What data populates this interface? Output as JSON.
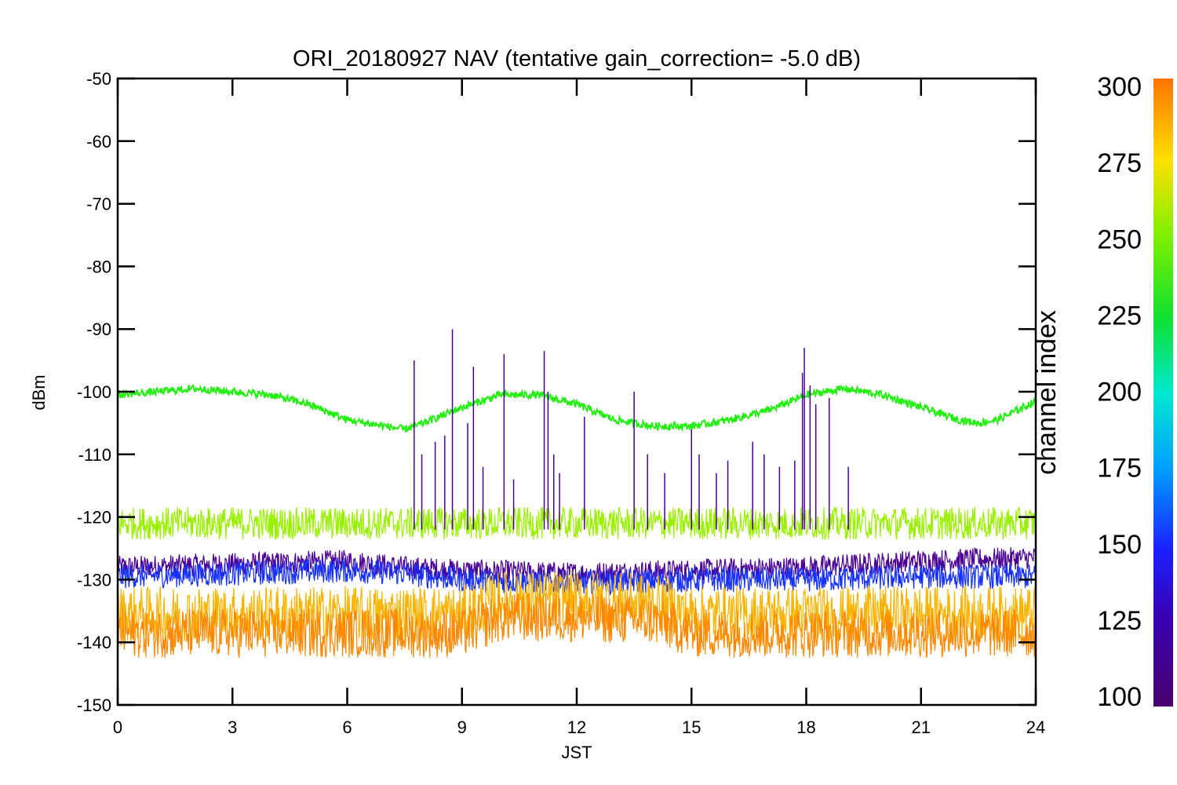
{
  "chart_data": {
    "type": "line",
    "title": "ORI_20180927 NAV (tentative gain_correction= -5.0 dB)",
    "xlabel": "JST",
    "ylabel": "dBm",
    "xlim": [
      0,
      24
    ],
    "ylim": [
      -150,
      -50
    ],
    "x_ticks": [
      0,
      3,
      6,
      9,
      12,
      15,
      18,
      21,
      24
    ],
    "y_ticks": [
      -50,
      -60,
      -70,
      -80,
      -90,
      -100,
      -110,
      -120,
      -130,
      -140,
      -150
    ],
    "grid": false,
    "colorbar": {
      "label": "channel index",
      "range": [
        100,
        300
      ],
      "ticks": [
        100,
        125,
        150,
        175,
        200,
        225,
        250,
        275,
        300
      ]
    },
    "series": [
      {
        "channel": 230,
        "color": "#22ee10",
        "x": [
          0,
          1,
          2,
          3,
          4,
          5,
          6,
          7,
          7.5,
          8,
          9,
          10,
          11,
          12,
          13,
          13.5,
          14,
          15,
          16,
          17,
          18,
          19,
          20,
          21,
          22,
          22.5,
          23,
          24
        ],
        "y": [
          -100.5,
          -100,
          -99.5,
          -100,
          -100.5,
          -102,
          -104.5,
          -105.5,
          -106,
          -105,
          -102.5,
          -100.5,
          -100.5,
          -102,
          -104.5,
          -105,
          -105.5,
          -105.5,
          -104.5,
          -103,
          -100.5,
          -99.5,
          -100.5,
          -102.5,
          -104.5,
          -105,
          -104.5,
          -101.5
        ]
      },
      {
        "channel": 260,
        "color": "#9af000",
        "x": [
          0,
          3,
          6,
          9,
          12,
          15,
          18,
          21,
          24
        ],
        "y": [
          -121,
          -121,
          -121,
          -121,
          -121,
          -121,
          -121,
          -121,
          -121
        ]
      },
      {
        "channel": 110,
        "color": "#4a0090",
        "x": [
          0,
          3,
          6,
          7.5,
          9,
          12,
          15,
          18,
          21,
          24
        ],
        "y": [
          -128,
          -127.5,
          -127,
          -128,
          -128.5,
          -129,
          -128.5,
          -128,
          -127,
          -126.5
        ]
      },
      {
        "channel": 130,
        "color": "#1530ff",
        "x": [
          0,
          3,
          6,
          7.5,
          9,
          12,
          15,
          18,
          21,
          24
        ],
        "y": [
          -129.5,
          -129,
          -128.5,
          -129,
          -130,
          -130.5,
          -130,
          -130,
          -129.5,
          -129.5
        ]
      },
      {
        "channel": 280,
        "color": "#f8b400",
        "x": [
          0,
          3,
          6,
          9,
          10,
          12,
          14,
          15,
          18,
          21,
          24
        ],
        "y": [
          -135.5,
          -135.5,
          -135.5,
          -135.5,
          -133,
          -133,
          -133.5,
          -135.5,
          -135.5,
          -135.5,
          -135.5
        ]
      },
      {
        "channel": 295,
        "color": "#ff8800",
        "x": [
          0,
          3,
          6,
          9,
          10,
          12,
          14,
          15,
          18,
          21,
          24
        ],
        "y": [
          -138.5,
          -138.5,
          -138.5,
          -138.5,
          -136,
          -136,
          -136.5,
          -138.5,
          -138.5,
          -138.5,
          -138.5
        ]
      }
    ],
    "spikes": {
      "channel": 110,
      "color": "#4a0090",
      "x": [
        7.75,
        7.95,
        8.3,
        8.55,
        8.75,
        9.15,
        9.3,
        9.55,
        10.1,
        10.35,
        11.15,
        11.25,
        11.4,
        11.55,
        12.2,
        13.5,
        13.85,
        14.3,
        15.0,
        15.2,
        15.65,
        15.95,
        16.6,
        16.9,
        17.3,
        17.7,
        17.9,
        17.95,
        18.1,
        18.25,
        18.6,
        19.1
      ],
      "y": [
        -95,
        -110,
        -108,
        -107,
        -90,
        -105,
        -96,
        -112,
        -94,
        -114,
        -93.5,
        -100,
        -110,
        -113,
        -104,
        -100,
        -110,
        -113,
        -106,
        -110,
        -113,
        -111,
        -108,
        -110,
        -112,
        -111,
        -97,
        -93,
        -99,
        -102,
        -101,
        -112
      ]
    }
  }
}
